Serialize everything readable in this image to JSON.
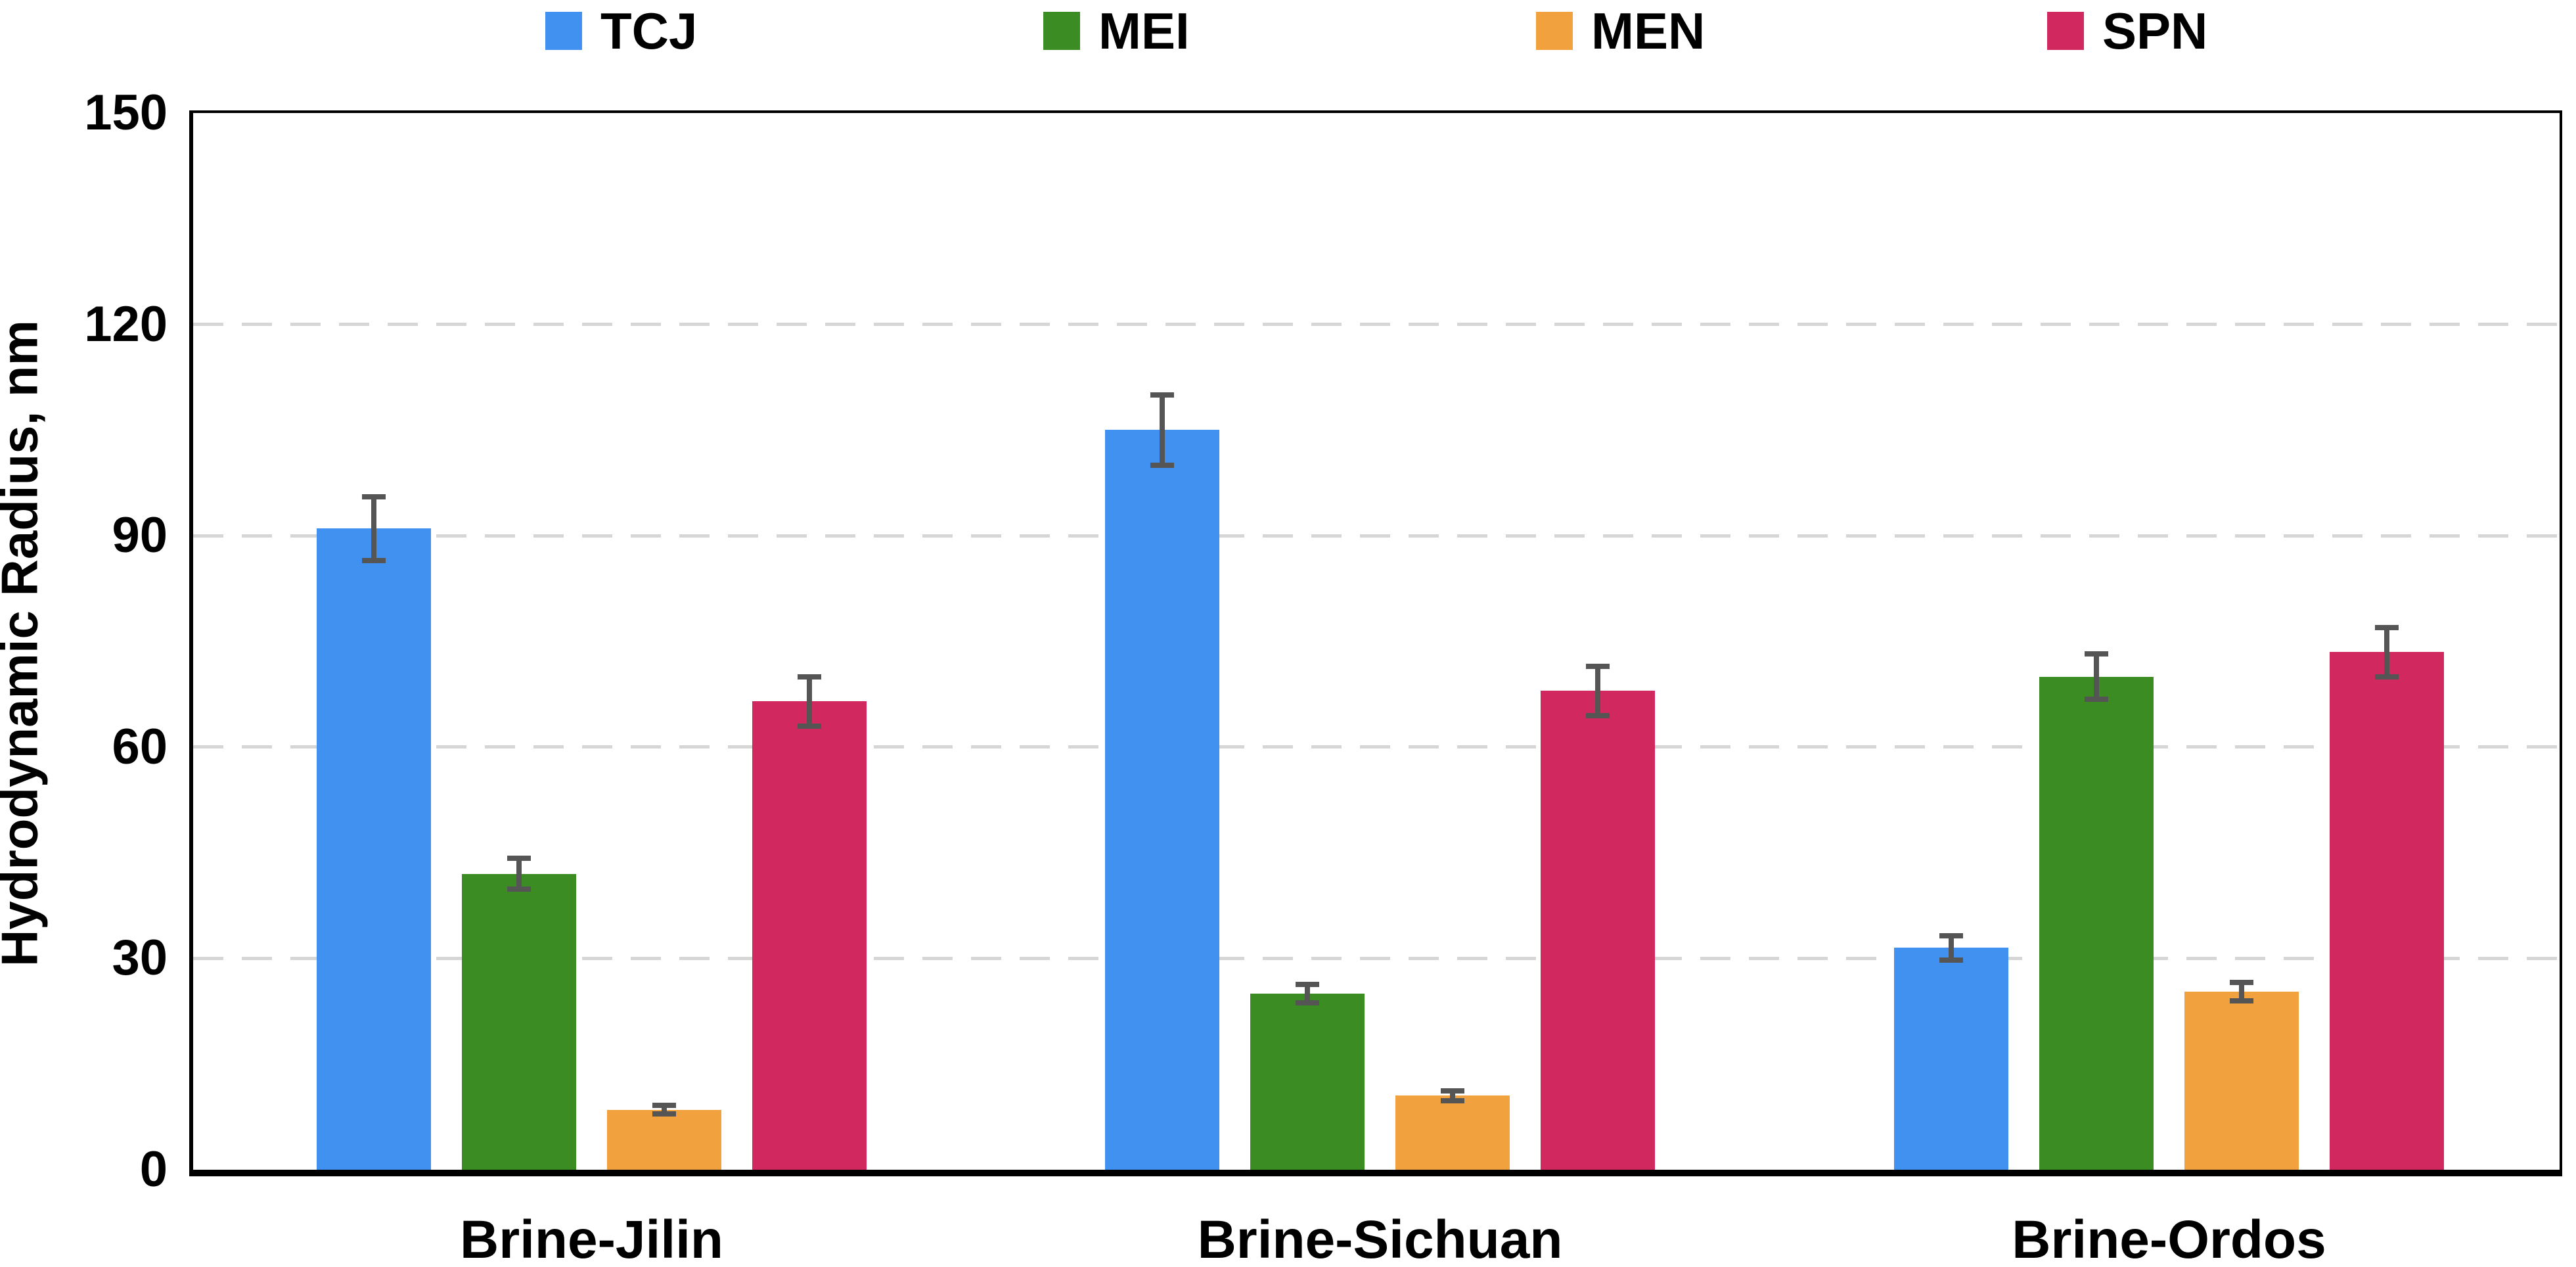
{
  "chart_data": {
    "type": "bar",
    "title": "",
    "xlabel": "",
    "ylabel": "Hydrodynamic Radius, nm",
    "ylim": [
      0,
      150
    ],
    "yticks": [
      0,
      30,
      60,
      90,
      120,
      150
    ],
    "grid": "horizontal dashed gridlines at 30,60,90,120; full black frame around plot",
    "legend_position": "top",
    "categories": [
      "Brine-Jilin",
      "Brine-Sichuan",
      "Brine-Ordos"
    ],
    "series": [
      {
        "name": "TCJ",
        "color": "#4191f1",
        "values": [
          91,
          105,
          31.5
        ],
        "errors": [
          4.5,
          5,
          1.7
        ]
      },
      {
        "name": "MEI",
        "color": "#3a8c23",
        "values": [
          42,
          25,
          70
        ],
        "errors": [
          2.2,
          1.3,
          3.2
        ]
      },
      {
        "name": "MEN",
        "color": "#f1a23e",
        "values": [
          8.5,
          10.5,
          25.3
        ],
        "errors": [
          0.6,
          0.7,
          1.3
        ]
      },
      {
        "name": "SPN",
        "color": "#d22860",
        "values": [
          66.5,
          68,
          73.5
        ],
        "errors": [
          3.5,
          3.5,
          3.5
        ]
      }
    ],
    "error_bar_color": "#555555",
    "gridline_color": "#d6d6d6",
    "axis_color": "#000000",
    "text_color": "#000000"
  }
}
